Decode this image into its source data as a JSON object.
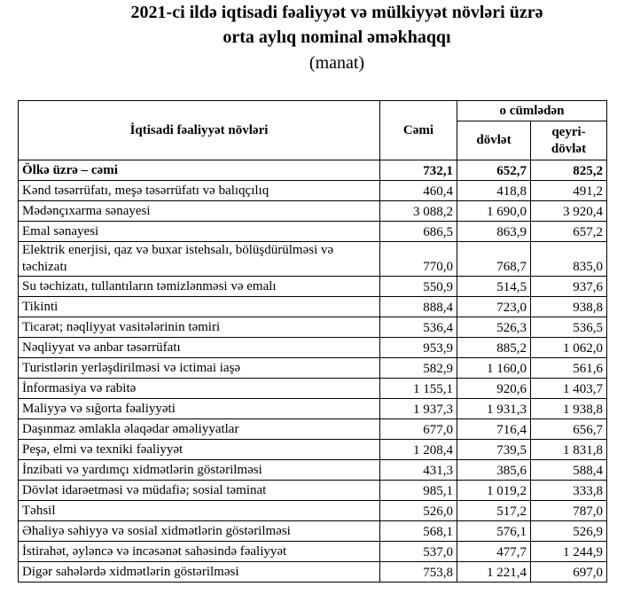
{
  "header": {
    "title_lines": [
      "2021-ci ildə iqtisadi fəaliyyət və mülkiyyət növləri üzrə",
      "orta aylıq nominal əməkhaqqı"
    ],
    "unit": "(manat)"
  },
  "table": {
    "columns": {
      "name": "İqtisadi fəaliyyət növləri",
      "total": "Cəmi",
      "group": "o cümlədən",
      "state": "dövlət",
      "nonstate": "qeyri-dövlət"
    },
    "rows": [
      [
        "Ölkə üzrə – cəmi",
        "732,1",
        "652,7",
        "825,2"
      ],
      [
        "Kənd təsərrüfatı, meşə təsərrüfatı və balıqçılıq",
        "460,4",
        "418,8",
        "491,2"
      ],
      [
        "Mədənçıxarma sənayesi",
        "3 088,2",
        "1 690,0",
        "3 920,4"
      ],
      [
        "Emal sənayesi",
        "686,5",
        "863,9",
        "657,2"
      ],
      [
        "Elektrik enerjisi, qaz və buxar istehsalı, bölüşdürülməsi və təchizatı",
        "770,0",
        "768,7",
        "835,0"
      ],
      [
        "Su təchizatı, tullantıların təmizlənməsi və emalı",
        "550,9",
        "514,5",
        "937,6"
      ],
      [
        "Tikinti",
        "888,4",
        "723,0",
        "938,8"
      ],
      [
        "Ticarət; nəqliyyat vasitələrinin təmiri",
        "536,4",
        "526,3",
        "536,5"
      ],
      [
        "Nəqliyyat və anbar təsərrüfatı",
        "953,9",
        "885,2",
        "1 062,0"
      ],
      [
        "Turistlərin yerləşdirilməsi və ictimai iaşə",
        "582,9",
        "1 160,0",
        "561,6"
      ],
      [
        "İnformasiya və rabitə",
        "1 155,1",
        "920,6",
        "1 403,7"
      ],
      [
        "Maliyyə və sığorta fəaliyyəti",
        "1 937,3",
        "1 931,3",
        "1 938,8"
      ],
      [
        "Daşınmaz əmlakla əlaqədar əməliyyatlar",
        "677,0",
        "716,4",
        "656,7"
      ],
      [
        "Peşə, elmi və texniki fəaliyyət",
        "1 208,4",
        "739,5",
        "1 831,8"
      ],
      [
        "İnzibati və yardımçı xidmətlərin göstərilməsi",
        "431,3",
        "385,6",
        "588,4"
      ],
      [
        "Dövlət idarəetməsi və müdafiə; sosial təminat",
        "985,1",
        "1 019,2",
        "333,8"
      ],
      [
        "Təhsil",
        "526,0",
        "517,2",
        "787,0"
      ],
      [
        "Əhaliyə səhiyyə və sosial xidmətlərin göstərilməsi",
        "568,1",
        "576,1",
        "526,9"
      ],
      [
        "İstirahət, əyləncə və incəsənət sahəsində fəaliyyət",
        "537,0",
        "477,7",
        "1 244,9"
      ],
      [
        "Digər sahələrdə xidmətlərin göstərilməsi",
        "753,8",
        "1 221,4",
        "697,0"
      ]
    ]
  }
}
